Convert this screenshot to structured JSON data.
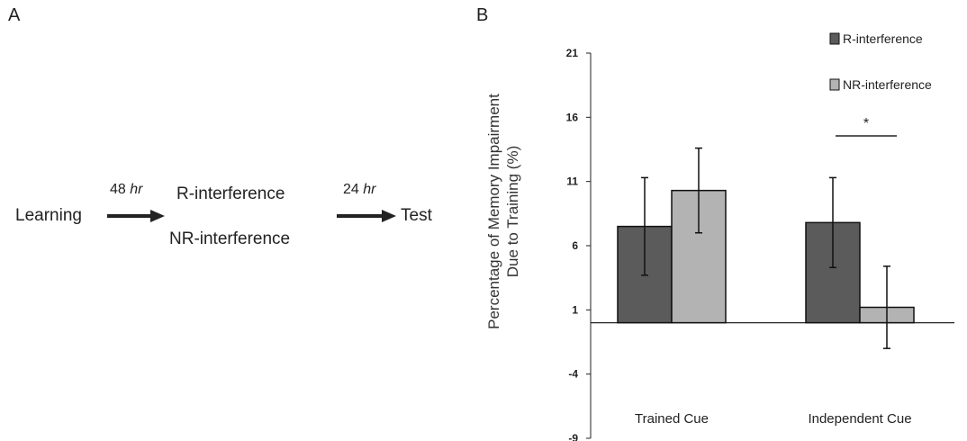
{
  "panel_a": {
    "label": "A",
    "learning": "Learning",
    "delay1_value": "48",
    "delay1_unit": "hr",
    "condition_r": "R-interference",
    "condition_nr": "NR-interference",
    "delay2_value": "24",
    "delay2_unit": "hr",
    "test": "Test"
  },
  "panel_b": {
    "label": "B"
  },
  "colors": {
    "r_interference": "#5b5b5b",
    "nr_interference": "#b3b3b3"
  },
  "chart_data": {
    "type": "bar",
    "categories": [
      "Trained Cue",
      "Independent Cue"
    ],
    "series": [
      {
        "name": "R-interference",
        "values": [
          7.5,
          7.8
        ],
        "errors": [
          3.8,
          3.5
        ]
      },
      {
        "name": "NR-interference",
        "values": [
          10.3,
          1.2
        ],
        "errors": [
          3.3,
          3.2
        ]
      }
    ],
    "ylabel_line1": "Percentage of Memory Impairment",
    "ylabel_line2": "Due to Training (%)",
    "ylim": [
      -9,
      21
    ],
    "yticks": [
      21,
      16,
      11,
      6,
      1,
      -4,
      -9
    ],
    "baseline": 0,
    "legend_position": "top-right",
    "significance": {
      "category": "Independent Cue",
      "label": "*"
    }
  }
}
